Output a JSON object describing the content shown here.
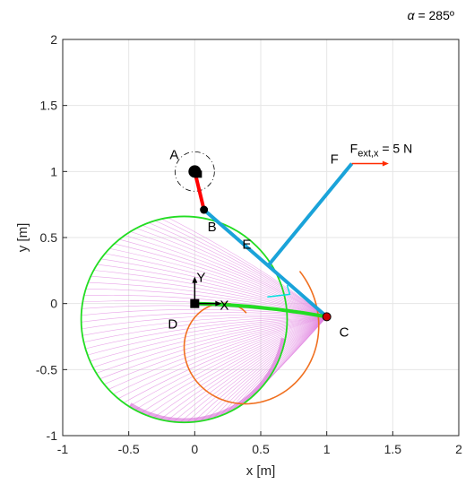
{
  "chart_data": {
    "type": "line",
    "title": "",
    "annotation": {
      "symbol": "α",
      "text": " = 285º"
    },
    "xlabel": "x [m]",
    "ylabel": "y [m]",
    "xlim": [
      -1,
      2
    ],
    "ylim": [
      -1,
      2
    ],
    "xticks": [
      -1,
      -0.5,
      0,
      0.5,
      1,
      1.5,
      2
    ],
    "yticks": [
      -1,
      -0.5,
      0,
      0.5,
      1,
      1.5,
      2
    ],
    "xtick_labels": [
      "-1",
      "-0.5",
      "0",
      "0.5",
      "1",
      "1.5",
      "2"
    ],
    "ytick_labels": [
      "-1",
      "-0.5",
      "0",
      "0.5",
      "1",
      "1.5",
      "2"
    ],
    "grid": true,
    "colors": {
      "crank": "#ff0000",
      "link": "#1aa3d9",
      "envelope": "#22dd22",
      "path": "#f07020",
      "force": "#ff2a00",
      "family": "#e080e0",
      "short_link": "#00e0e0"
    },
    "points": [
      {
        "name": "A",
        "x": 0.0,
        "y": 1.0
      },
      {
        "name": "B",
        "x": 0.07,
        "y": 0.71
      },
      {
        "name": "C",
        "x": 1.0,
        "y": -0.1
      },
      {
        "name": "D",
        "x": 0.0,
        "y": 0.0
      },
      {
        "name": "E",
        "x": 0.55,
        "y": 0.28
      },
      {
        "name": "F",
        "x": 1.19,
        "y": 1.06
      }
    ],
    "frame_labels": {
      "x_axis": "X",
      "y_axis": "Y"
    },
    "force_label": {
      "main": "F",
      "sub": "ext,x",
      "rest": " = 5 N"
    },
    "force": {
      "x_start": 1.19,
      "x_end": 1.47,
      "y": 1.06
    }
  }
}
